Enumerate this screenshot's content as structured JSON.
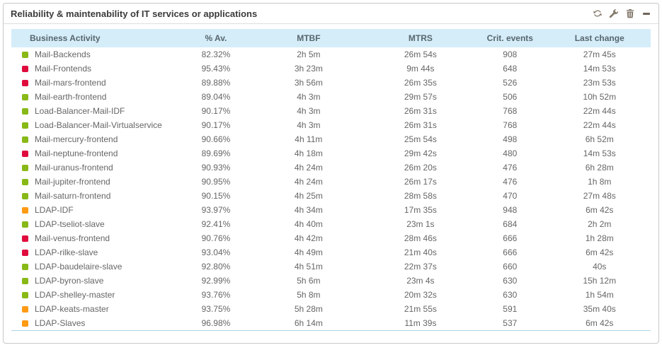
{
  "widget": {
    "title": "Reliability & maintenability of IT services or applications",
    "controls": {
      "refresh": "refresh",
      "configure": "configure",
      "delete": "delete",
      "collapse": "collapse"
    }
  },
  "table": {
    "columns": [
      "Business Activity",
      "% Av.",
      "MTBF",
      "MTRS",
      "Crit. events",
      "Last change"
    ],
    "rows": [
      {
        "status": "ok",
        "name": "Mail-Backends",
        "availability": "82.32%",
        "mtbf": "2h 5m",
        "mtrs": "26m 54s",
        "crit_events": "908",
        "last_change": "27m 45s"
      },
      {
        "status": "critical",
        "name": "Mail-Frontends",
        "availability": "95.43%",
        "mtbf": "3h 23m",
        "mtrs": "9m 44s",
        "crit_events": "648",
        "last_change": "14m 53s"
      },
      {
        "status": "critical",
        "name": "Mail-mars-frontend",
        "availability": "89.88%",
        "mtbf": "3h 56m",
        "mtrs": "26m 35s",
        "crit_events": "526",
        "last_change": "23m 53s"
      },
      {
        "status": "ok",
        "name": "Mail-earth-frontend",
        "availability": "89.04%",
        "mtbf": "4h 3m",
        "mtrs": "29m 57s",
        "crit_events": "506",
        "last_change": "10h 52m"
      },
      {
        "status": "ok",
        "name": "Load-Balancer-Mail-IDF",
        "availability": "90.17%",
        "mtbf": "4h 3m",
        "mtrs": "26m 31s",
        "crit_events": "768",
        "last_change": "22m 44s"
      },
      {
        "status": "ok",
        "name": "Load-Balancer-Mail-Virtualservice",
        "availability": "90.17%",
        "mtbf": "4h 3m",
        "mtrs": "26m 31s",
        "crit_events": "768",
        "last_change": "22m 44s"
      },
      {
        "status": "ok",
        "name": "Mail-mercury-frontend",
        "availability": "90.66%",
        "mtbf": "4h 11m",
        "mtrs": "25m 54s",
        "crit_events": "498",
        "last_change": "6h 52m"
      },
      {
        "status": "critical",
        "name": "Mail-neptune-frontend",
        "availability": "89.69%",
        "mtbf": "4h 18m",
        "mtrs": "29m 42s",
        "crit_events": "480",
        "last_change": "14m 53s"
      },
      {
        "status": "ok",
        "name": "Mail-uranus-frontend",
        "availability": "90.93%",
        "mtbf": "4h 24m",
        "mtrs": "26m 20s",
        "crit_events": "476",
        "last_change": "6h 28m"
      },
      {
        "status": "ok",
        "name": "Mail-jupiter-frontend",
        "availability": "90.95%",
        "mtbf": "4h 24m",
        "mtrs": "26m 17s",
        "crit_events": "476",
        "last_change": "1h 8m"
      },
      {
        "status": "ok",
        "name": "Mail-saturn-frontend",
        "availability": "90.15%",
        "mtbf": "4h 25m",
        "mtrs": "28m 58s",
        "crit_events": "470",
        "last_change": "27m 48s"
      },
      {
        "status": "warning",
        "name": "LDAP-IDF",
        "availability": "93.97%",
        "mtbf": "4h 34m",
        "mtrs": "17m 35s",
        "crit_events": "948",
        "last_change": "6m 42s"
      },
      {
        "status": "ok",
        "name": "LDAP-tseliot-slave",
        "availability": "92.41%",
        "mtbf": "4h 40m",
        "mtrs": "23m 1s",
        "crit_events": "684",
        "last_change": "2h 2m"
      },
      {
        "status": "critical",
        "name": "Mail-venus-frontend",
        "availability": "90.76%",
        "mtbf": "4h 42m",
        "mtrs": "28m 46s",
        "crit_events": "666",
        "last_change": "1h 28m"
      },
      {
        "status": "critical",
        "name": "LDAP-rilke-slave",
        "availability": "93.04%",
        "mtbf": "4h 49m",
        "mtrs": "21m 40s",
        "crit_events": "666",
        "last_change": "6m 42s"
      },
      {
        "status": "ok",
        "name": "LDAP-baudelaire-slave",
        "availability": "92.80%",
        "mtbf": "4h 51m",
        "mtrs": "22m 37s",
        "crit_events": "660",
        "last_change": "40s"
      },
      {
        "status": "ok",
        "name": "LDAP-byron-slave",
        "availability": "92.99%",
        "mtbf": "5h 6m",
        "mtrs": "23m 4s",
        "crit_events": "630",
        "last_change": "15h 12m"
      },
      {
        "status": "ok",
        "name": "LDAP-shelley-master",
        "availability": "93.76%",
        "mtbf": "5h 8m",
        "mtrs": "20m 32s",
        "crit_events": "630",
        "last_change": "1h 54m"
      },
      {
        "status": "warning",
        "name": "LDAP-keats-master",
        "availability": "93.75%",
        "mtbf": "5h 28m",
        "mtrs": "21m 55s",
        "crit_events": "591",
        "last_change": "35m 40s"
      },
      {
        "status": "warning",
        "name": "LDAP-Slaves",
        "availability": "96.98%",
        "mtbf": "6h 14m",
        "mtrs": "11m 39s",
        "crit_events": "537",
        "last_change": "6m 42s"
      }
    ]
  },
  "colors": {
    "ok": "#88b917",
    "warning": "#ff9a13",
    "critical": "#e00b3d",
    "header_bg": "#d5edf9"
  }
}
